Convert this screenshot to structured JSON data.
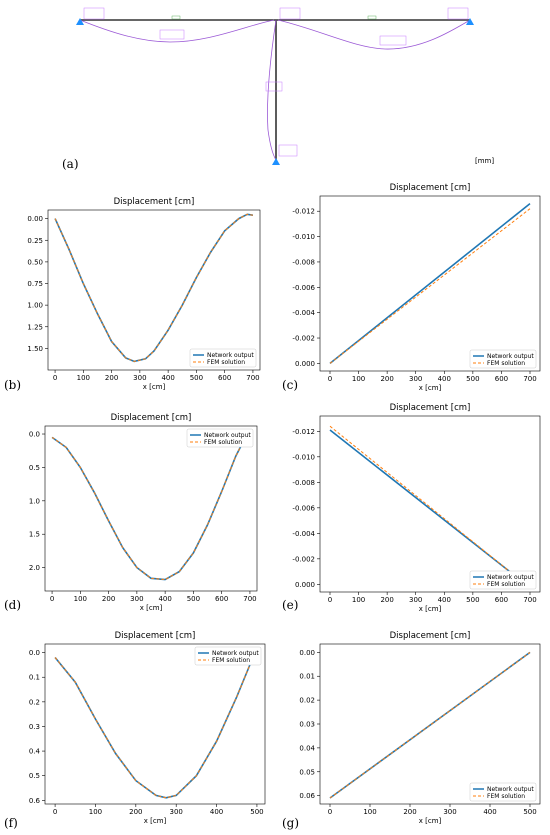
{
  "figure": {
    "panel_labels": [
      "(a)",
      "(b)",
      "(c)",
      "(d)",
      "(e)",
      "(f)",
      "(g)"
    ],
    "unit_label": "[mm]",
    "colors": {
      "network": "#1f77b4",
      "fem": "#ff7f0e",
      "frame": "#333333",
      "deformed": "#9b59d6",
      "support": "#1e90ff"
    }
  },
  "chart_data": [
    {
      "panel": "(b)",
      "type": "line",
      "title": "Displacement [cm]",
      "xlabel": "x [cm]",
      "xlim": [
        -25,
        725
      ],
      "xticks": [
        0,
        100,
        200,
        300,
        400,
        500,
        600,
        700
      ],
      "ylim": [
        1.75,
        -0.1
      ],
      "yticks": [
        "0.00",
        "0.25",
        "0.50",
        "0.75",
        "1.00",
        "1.25",
        "1.50"
      ],
      "legend": "bottom-right",
      "series": [
        {
          "name": "Network output",
          "style": "solid",
          "x": [
            0,
            50,
            100,
            150,
            200,
            250,
            280,
            320,
            350,
            400,
            450,
            500,
            550,
            600,
            650,
            680,
            700
          ],
          "y": [
            0.0,
            0.36,
            0.75,
            1.1,
            1.42,
            1.61,
            1.65,
            1.62,
            1.53,
            1.29,
            1.0,
            0.68,
            0.39,
            0.14,
            0.0,
            -0.05,
            -0.04
          ]
        },
        {
          "name": "FEM solution",
          "style": "dashed",
          "x": [
            0,
            50,
            100,
            150,
            200,
            250,
            280,
            320,
            350,
            400,
            450,
            500,
            550,
            600,
            650,
            680,
            700
          ],
          "y": [
            0.0,
            0.36,
            0.75,
            1.1,
            1.42,
            1.61,
            1.65,
            1.62,
            1.53,
            1.29,
            1.0,
            0.68,
            0.39,
            0.14,
            0.0,
            -0.05,
            -0.04
          ]
        }
      ]
    },
    {
      "panel": "(c)",
      "type": "line",
      "title": "Displacement [cm]",
      "xlabel": "x [cm]",
      "xlim": [
        -35,
        735
      ],
      "xticks": [
        0,
        100,
        200,
        300,
        400,
        500,
        600,
        700
      ],
      "ylim": [
        0.0006,
        -0.0132
      ],
      "yticks": [
        "-0.012",
        "-0.010",
        "-0.008",
        "-0.006",
        "-0.004",
        "-0.002",
        "0.000"
      ],
      "legend": "bottom-right",
      "series": [
        {
          "name": "Network output",
          "style": "solid",
          "x": [
            0,
            700
          ],
          "y": [
            0.0,
            -0.0126
          ]
        },
        {
          "name": "FEM solution",
          "style": "dashed",
          "x": [
            0,
            700
          ],
          "y": [
            0.0,
            -0.0122
          ]
        }
      ]
    },
    {
      "panel": "(d)",
      "type": "line",
      "title": "Displacement [cm]",
      "xlabel": "x [cm]",
      "xlim": [
        -25,
        725
      ],
      "xticks": [
        0,
        100,
        200,
        300,
        400,
        500,
        600,
        700
      ],
      "ylim": [
        2.35,
        -0.12
      ],
      "yticks": [
        "0.0",
        "0.5",
        "1.0",
        "1.5",
        "2.0"
      ],
      "legend": "top-right",
      "series": [
        {
          "name": "Network output",
          "style": "solid",
          "x": [
            0,
            50,
            100,
            150,
            200,
            250,
            300,
            350,
            400,
            450,
            500,
            550,
            600,
            650,
            690
          ],
          "y": [
            0.05,
            0.2,
            0.5,
            0.88,
            1.3,
            1.7,
            2.0,
            2.16,
            2.18,
            2.06,
            1.78,
            1.36,
            0.86,
            0.33,
            0.0
          ]
        },
        {
          "name": "FEM solution",
          "style": "dashed",
          "x": [
            0,
            50,
            100,
            150,
            200,
            250,
            300,
            350,
            400,
            450,
            500,
            550,
            600,
            650,
            690
          ],
          "y": [
            0.05,
            0.2,
            0.5,
            0.88,
            1.3,
            1.7,
            2.0,
            2.16,
            2.18,
            2.06,
            1.78,
            1.36,
            0.86,
            0.33,
            0.0
          ]
        }
      ]
    },
    {
      "panel": "(e)",
      "type": "line",
      "title": "Displacement [cm]",
      "xlabel": "x [cm]",
      "xlim": [
        -35,
        735
      ],
      "xticks": [
        0,
        100,
        200,
        300,
        400,
        500,
        600,
        700
      ],
      "ylim": [
        0.0006,
        -0.0132
      ],
      "yticks": [
        "-0.012",
        "-0.010",
        "-0.008",
        "-0.006",
        "-0.004",
        "-0.002",
        "0.000"
      ],
      "legend": "bottom-right",
      "series": [
        {
          "name": "Network output",
          "style": "solid",
          "x": [
            0,
            640
          ],
          "y": [
            -0.0121,
            -0.0008
          ]
        },
        {
          "name": "FEM solution",
          "style": "dashed",
          "x": [
            0,
            640
          ],
          "y": [
            -0.0124,
            -0.0008
          ]
        }
      ]
    },
    {
      "panel": "(f)",
      "type": "line",
      "title": "Displacement [cm]",
      "xlabel": "x [cm]",
      "xlim": [
        -25,
        520
      ],
      "xticks": [
        0,
        100,
        200,
        300,
        400,
        500
      ],
      "ylim": [
        0.615,
        -0.035
      ],
      "yticks": [
        "0.0",
        "0.1",
        "0.2",
        "0.3",
        "0.4",
        "0.5",
        "0.6"
      ],
      "legend": "top-right",
      "series": [
        {
          "name": "Network output",
          "style": "solid",
          "x": [
            0,
            50,
            100,
            150,
            200,
            250,
            275,
            300,
            350,
            400,
            450,
            490
          ],
          "y": [
            0.02,
            0.12,
            0.27,
            0.41,
            0.52,
            0.58,
            0.59,
            0.58,
            0.5,
            0.36,
            0.18,
            0.02
          ]
        },
        {
          "name": "FEM solution",
          "style": "dashed",
          "x": [
            0,
            50,
            100,
            150,
            200,
            250,
            275,
            300,
            350,
            400,
            450,
            490
          ],
          "y": [
            0.02,
            0.12,
            0.27,
            0.41,
            0.52,
            0.58,
            0.59,
            0.58,
            0.5,
            0.36,
            0.18,
            0.02
          ]
        }
      ]
    },
    {
      "panel": "(g)",
      "type": "line",
      "title": "Displacement [cm]",
      "xlabel": "x [cm]",
      "xlim": [
        -25,
        525
      ],
      "xticks": [
        0,
        100,
        200,
        300,
        400,
        500
      ],
      "ylim": [
        0.0635,
        -0.0035
      ],
      "yticks": [
        "0.00",
        "0.01",
        "0.02",
        "0.03",
        "0.04",
        "0.05",
        "0.06"
      ],
      "legend": "bottom-right",
      "series": [
        {
          "name": "Network output",
          "style": "solid",
          "x": [
            0,
            500
          ],
          "y": [
            0.061,
            0.0
          ]
        },
        {
          "name": "FEM solution",
          "style": "dashed",
          "x": [
            0,
            500
          ],
          "y": [
            0.061,
            0.0
          ]
        }
      ]
    }
  ]
}
